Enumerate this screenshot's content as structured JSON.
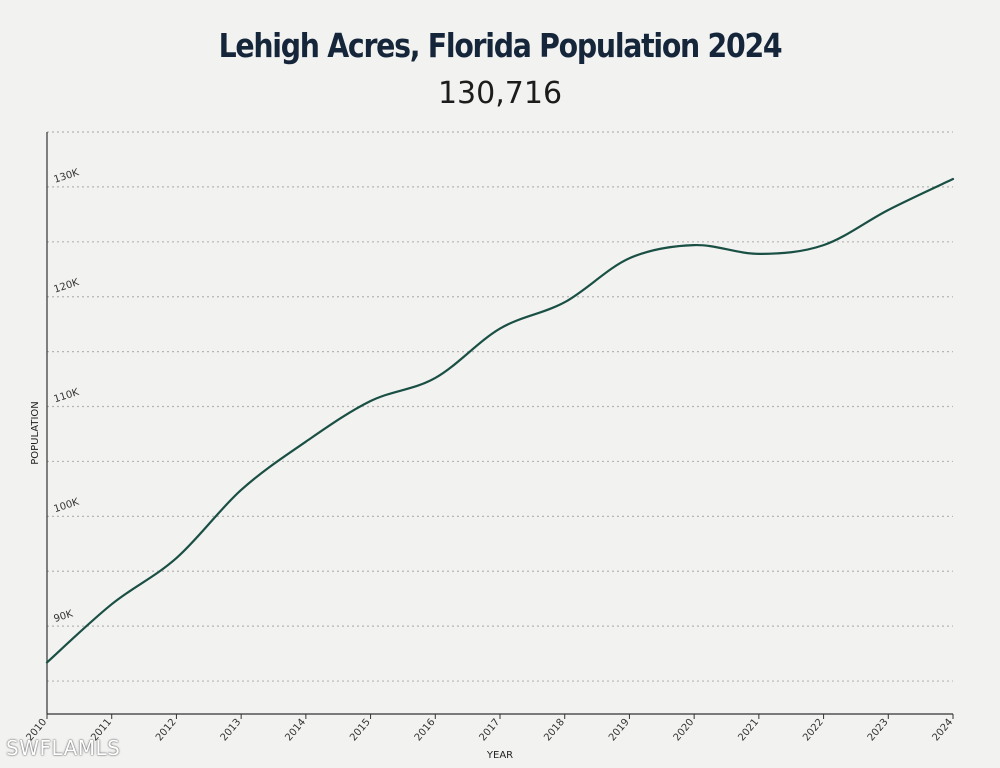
{
  "chart_data": {
    "type": "line",
    "title": "Lehigh Acres, Florida Population 2024",
    "subtitle": "130,716",
    "xlabel": "YEAR",
    "ylabel": "POPULATION",
    "x": [
      "2010",
      "2011",
      "2012",
      "2013",
      "2014",
      "2015",
      "2016",
      "2017",
      "2018",
      "2019",
      "2020",
      "2021",
      "2022",
      "2023",
      "2024"
    ],
    "series": [
      {
        "values": [
          86700,
          92000,
          96200,
          102400,
          106800,
          110500,
          112600,
          117100,
          119500,
          123500,
          124700,
          123900,
          124700,
          127900,
          130716
        ]
      }
    ],
    "y_ticks": [
      {
        "value": 90000,
        "label": "90K"
      },
      {
        "value": 100000,
        "label": "100K"
      },
      {
        "value": 110000,
        "label": "110K"
      },
      {
        "value": 120000,
        "label": "120K"
      },
      {
        "value": 130000,
        "label": "130K"
      }
    ],
    "gridlines_every": 5000,
    "ylim": [
      82000,
      135000
    ],
    "grid": true,
    "line_color": "#1a5044",
    "grid_color": "#b5b5b5"
  },
  "watermark": "SWFLAMLS"
}
